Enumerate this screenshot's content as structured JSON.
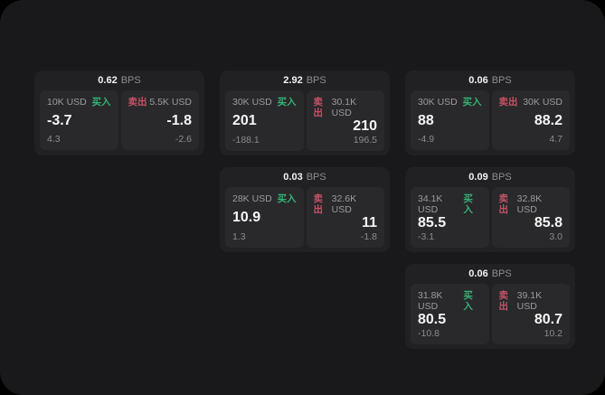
{
  "labels": {
    "bps_unit": "BPS",
    "buy": "买入",
    "sell": "卖出"
  },
  "colors": {
    "background": "#000000",
    "panel": "#19191b",
    "card": "#212123",
    "tile": "#29292b",
    "text_primary": "#f5f5f6",
    "text_muted": "#8b8b90",
    "buy_green": "#34b273",
    "sell_red": "#c45367"
  },
  "cards": [
    {
      "column": 1,
      "row": 1,
      "bps": "0.62",
      "buy": {
        "amount": "10K USD",
        "value": "-3.7",
        "sub": "4.3"
      },
      "sell": {
        "amount": "5.5K USD",
        "value": "-1.8",
        "sub": "-2.6"
      }
    },
    {
      "column": 2,
      "row": 1,
      "bps": "2.92",
      "buy": {
        "amount": "30K USD",
        "value": "201",
        "sub": "-188.1"
      },
      "sell": {
        "amount": "30.1K USD",
        "value": "210",
        "sub": "196.5"
      }
    },
    {
      "column": 3,
      "row": 1,
      "bps": "0.06",
      "buy": {
        "amount": "30K USD",
        "value": "88",
        "sub": "-4.9"
      },
      "sell": {
        "amount": "30K USD",
        "value": "88.2",
        "sub": "4.7"
      }
    },
    {
      "column": 2,
      "row": 2,
      "bps": "0.03",
      "buy": {
        "amount": "28K USD",
        "value": "10.9",
        "sub": "1.3"
      },
      "sell": {
        "amount": "32.6K USD",
        "value": "11",
        "sub": "-1.8"
      }
    },
    {
      "column": 3,
      "row": 2,
      "bps": "0.09",
      "buy": {
        "amount": "34.1K USD",
        "value": "85.5",
        "sub": "-3.1"
      },
      "sell": {
        "amount": "32.8K USD",
        "value": "85.8",
        "sub": "3.0"
      }
    },
    {
      "column": 3,
      "row": 3,
      "bps": "0.06",
      "buy": {
        "amount": "31.8K USD",
        "value": "80.5",
        "sub": "-10.8"
      },
      "sell": {
        "amount": "39.1K USD",
        "value": "80.7",
        "sub": "10.2"
      }
    }
  ]
}
